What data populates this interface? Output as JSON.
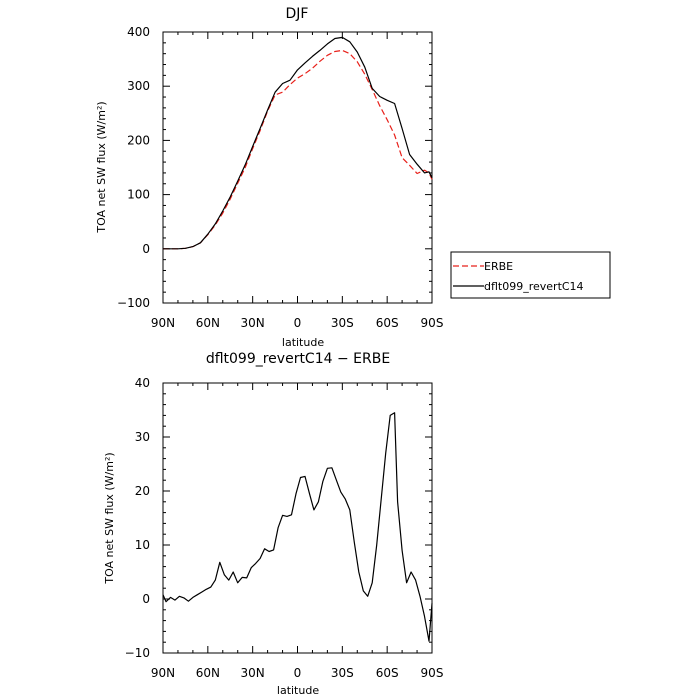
{
  "chart_data": [
    {
      "type": "line",
      "title": "DJF",
      "xlabel": "latitude",
      "ylabel": "TOA net SW flux (W/m²)",
      "ylim": [
        -100,
        400
      ],
      "yticks": [
        -100,
        0,
        100,
        200,
        300,
        400
      ],
      "ytick_labels": [
        "−100",
        "0",
        "100",
        "200",
        "300",
        "400"
      ],
      "xlim": [
        90,
        -90
      ],
      "xticks": [
        90,
        60,
        30,
        0,
        -30,
        -60,
        -90
      ],
      "xtick_labels": [
        "90N",
        "60N",
        "30N",
        "0",
        "30S",
        "60S",
        "90S"
      ],
      "legend_position": "outside-right",
      "x": [
        90,
        85,
        80,
        75,
        70,
        65,
        60,
        55,
        50,
        45,
        40,
        35,
        30,
        25,
        20,
        15,
        10,
        5,
        0,
        -5,
        -10,
        -15,
        -20,
        -25,
        -30,
        -35,
        -40,
        -45,
        -50,
        -55,
        -60,
        -65,
        -70,
        -75,
        -80,
        -85,
        -88,
        -90
      ],
      "series": [
        {
          "name": "ERBE",
          "color": "#e8201a",
          "dash": "6,3",
          "values": [
            0,
            0,
            0,
            1,
            4,
            11,
            26,
            44,
            66,
            92,
            121,
            150,
            185,
            218,
            254,
            284,
            289,
            303,
            315,
            323,
            333,
            346,
            357,
            364,
            366,
            360,
            345,
            322,
            294,
            264,
            238,
            210,
            168,
            154,
            139,
            145,
            140,
            128
          ]
        },
        {
          "name": "dflt099_revertC14",
          "color": "#000000",
          "dash": "",
          "values": [
            0,
            0,
            0,
            1,
            4,
            11,
            27,
            46,
            70,
            96,
            125,
            155,
            189,
            222,
            256,
            289,
            305,
            311,
            330,
            343,
            355,
            366,
            378,
            388,
            390,
            382,
            363,
            335,
            296,
            281,
            274,
            268,
            222,
            174,
            156,
            140,
            142,
            131
          ]
        }
      ]
    },
    {
      "type": "line",
      "title": "dflt099_revertC14 − ERBE",
      "xlabel": "latitude",
      "ylabel": "TOA net SW flux (W/m²)",
      "ylim": [
        -10,
        40
      ],
      "yticks": [
        -10,
        0,
        10,
        20,
        30,
        40
      ],
      "ytick_labels": [
        "−10",
        "0",
        "10",
        "20",
        "30",
        "40"
      ],
      "xlim": [
        90,
        -90
      ],
      "xticks": [
        90,
        60,
        30,
        0,
        -30,
        -60,
        -90
      ],
      "xtick_labels": [
        "90N",
        "60N",
        "30N",
        "0",
        "30S",
        "60S",
        "90S"
      ],
      "x": [
        90,
        88,
        85,
        82,
        79,
        76,
        73,
        70,
        67,
        64,
        61,
        58,
        55,
        52,
        49,
        46,
        43,
        40,
        37,
        34,
        31,
        28,
        25,
        22,
        19,
        16,
        13,
        10,
        7,
        4,
        1,
        -2,
        -5,
        -8,
        -11,
        -14,
        -17,
        -20,
        -23,
        -26,
        -29,
        -32,
        -35,
        -38,
        -41,
        -44,
        -47,
        -50,
        -53,
        -56,
        -59,
        -62,
        -65,
        -67,
        -70,
        -73,
        -76,
        -79,
        -82,
        -85,
        -88,
        -90
      ],
      "series": [
        {
          "name": "dflt099_revertC14 − ERBE",
          "color": "#000000",
          "dash": "",
          "values": [
            0.8,
            -0.5,
            0.3,
            -0.2,
            0.5,
            0.2,
            -0.4,
            0.3,
            0.8,
            1.3,
            1.8,
            2.2,
            3.5,
            6.8,
            4.5,
            3.5,
            5,
            3,
            4,
            3.9,
            5.8,
            6.6,
            7.5,
            9.3,
            8.8,
            9.1,
            13.2,
            15.5,
            15.3,
            15.6,
            19.5,
            22.5,
            22.7,
            19.5,
            16.5,
            18,
            21.8,
            24.2,
            24.3,
            22,
            19.8,
            18.5,
            16.5,
            10.5,
            5,
            1.5,
            0.5,
            3,
            10,
            18.5,
            27,
            34,
            34.5,
            18,
            9,
            3,
            5,
            3.5,
            0.5,
            -3.2,
            -7.8,
            -0.8
          ]
        }
      ]
    }
  ]
}
